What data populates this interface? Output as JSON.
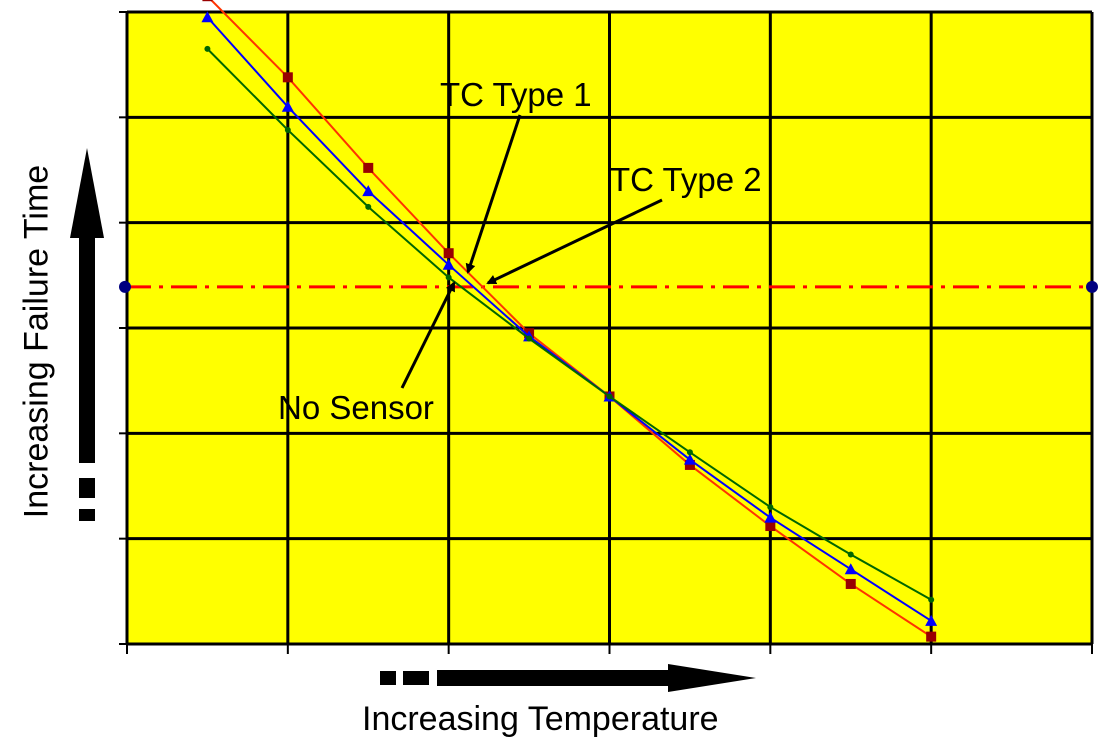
{
  "chart_data": {
    "type": "line",
    "title": "",
    "xlabel": "Increasing Temperature",
    "ylabel": "Increasing Failure Time",
    "xlim": [
      0,
      6
    ],
    "ylim": [
      0,
      6
    ],
    "grid": true,
    "background_color": "#ffff00",
    "series": [
      {
        "name": "TC Type 1",
        "color": "#ff3300",
        "marker": "square",
        "x": [
          0.5,
          1.0,
          1.5,
          2.0,
          2.5,
          3.0,
          3.5,
          4.0,
          4.5,
          5.0
        ],
        "y": [
          6.15,
          5.38,
          4.52,
          3.71,
          2.95,
          2.35,
          1.7,
          1.12,
          0.57,
          0.07
        ]
      },
      {
        "name": "TC Type 2",
        "color": "#0000ff",
        "marker": "triangle",
        "x": [
          0.5,
          1.0,
          1.5,
          2.0,
          2.5,
          3.0,
          3.5,
          4.0,
          4.5,
          5.0
        ],
        "y": [
          5.95,
          5.1,
          4.3,
          3.6,
          2.92,
          2.35,
          1.75,
          1.2,
          0.71,
          0.22
        ]
      },
      {
        "name": "No Sensor",
        "color": "#006600",
        "marker": "dot",
        "x": [
          0.5,
          1.0,
          1.5,
          2.0,
          2.5,
          3.0,
          3.5,
          4.0,
          4.5,
          5.0
        ],
        "y": [
          5.65,
          4.88,
          4.15,
          3.48,
          2.9,
          2.35,
          1.82,
          1.3,
          0.85,
          0.42
        ]
      }
    ],
    "reference_line": {
      "y": 3.39,
      "color": "#ff0000",
      "style": "dash-dot"
    },
    "annotations": [
      "TC Type 1",
      "TC Type 2",
      "No Sensor"
    ]
  }
}
